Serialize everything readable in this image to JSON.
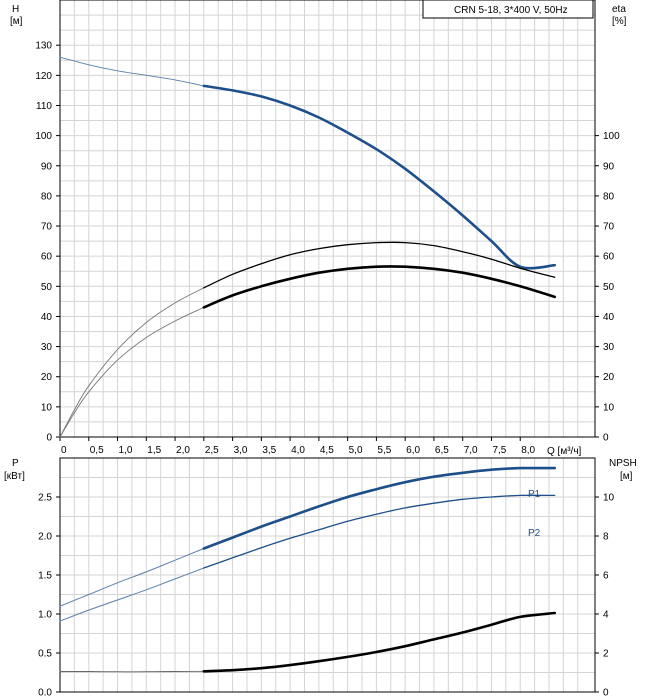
{
  "chart_data": [
    {
      "type": "line",
      "legend_box": "CRN 5-18, 3*400 V, 50Hz",
      "y_left": {
        "label_line1": "H",
        "label_line2": "[м]",
        "ticks": [
          0,
          10,
          20,
          30,
          40,
          50,
          60,
          70,
          80,
          90,
          100,
          110,
          120,
          130
        ],
        "range": [
          0,
          145
        ]
      },
      "y_right": {
        "label_line1": "eta",
        "label_line2": "[%]",
        "ticks": [
          0,
          10,
          20,
          30,
          40,
          50,
          60,
          70,
          80,
          90,
          100
        ],
        "range": [
          0,
          145
        ]
      },
      "x": {
        "label": "Q [м³/ч]",
        "range": [
          0,
          9.3
        ],
        "tick_labels": [
          "0",
          "0,5",
          "1,0",
          "1,5",
          "2,0",
          "2,5",
          "3,0",
          "3,5",
          "4,0",
          "4,5",
          "5,0",
          "5,5",
          "6,0",
          "6,5",
          "7,0",
          "7,5",
          "8,0"
        ]
      },
      "grid": true,
      "series": [
        {
          "id": "H",
          "color": "#1d4f8a",
          "thin": [
            [
              0,
              126
            ],
            [
              0.5,
              123.5
            ],
            [
              1,
              121.5
            ],
            [
              1.5,
              120
            ],
            [
              2,
              118.5
            ],
            [
              2.5,
              116.5
            ]
          ],
          "thick": [
            [
              2.5,
              116.5
            ],
            [
              3,
              115
            ],
            [
              3.5,
              113
            ],
            [
              4,
              110
            ],
            [
              4.5,
              106
            ],
            [
              5,
              101
            ],
            [
              5.5,
              95.5
            ],
            [
              6,
              89
            ],
            [
              6.5,
              81.5
            ],
            [
              7,
              73.5
            ],
            [
              7.5,
              65
            ],
            [
              8,
              56.5
            ],
            [
              8.6,
              57
            ]
          ]
        },
        {
          "id": "eta",
          "color": "#000000",
          "thin": [
            [
              0,
              0
            ],
            [
              0.25,
              9
            ],
            [
              0.5,
              17
            ],
            [
              1,
              29
            ],
            [
              1.5,
              38
            ],
            [
              2,
              44.5
            ],
            [
              2.5,
              49.5
            ]
          ],
          "thick": [
            [
              2.5,
              49.5
            ],
            [
              3,
              54
            ],
            [
              3.5,
              57.5
            ],
            [
              4,
              60.5
            ],
            [
              4.5,
              62.5
            ],
            [
              5,
              63.8
            ],
            [
              5.5,
              64.5
            ],
            [
              6,
              64.5
            ],
            [
              6.5,
              63.5
            ],
            [
              7,
              61.5
            ],
            [
              7.5,
              59
            ],
            [
              8,
              56
            ],
            [
              8.6,
              53
            ]
          ]
        },
        {
          "id": "eta2",
          "color": "#000000",
          "thin": [
            [
              0,
              0
            ],
            [
              0.25,
              8
            ],
            [
              0.5,
              15
            ],
            [
              1,
              25.5
            ],
            [
              1.5,
              33
            ],
            [
              2,
              38.5
            ],
            [
              2.5,
              43
            ]
          ],
          "thick": [
            [
              2.5,
              43
            ],
            [
              3,
              47
            ],
            [
              3.5,
              50
            ],
            [
              4,
              52.5
            ],
            [
              4.5,
              54.5
            ],
            [
              5,
              55.8
            ],
            [
              5.5,
              56.5
            ],
            [
              6,
              56.5
            ],
            [
              6.5,
              55.8
            ],
            [
              7,
              54.5
            ],
            [
              7.5,
              52.5
            ],
            [
              8,
              50
            ],
            [
              8.6,
              46.5
            ]
          ]
        }
      ]
    },
    {
      "type": "line",
      "y_left": {
        "label_line1": "P",
        "label_line2": "[кВт]",
        "ticks": [
          "0.0",
          "0.5",
          "1.0",
          "1.5",
          "2.0",
          "2.5"
        ],
        "range": [
          0,
          3.0
        ]
      },
      "y_right": {
        "label_line1": "NPSH",
        "label_line2": "[м]",
        "ticks": [
          "0",
          "2",
          "4",
          "6",
          "8",
          "10"
        ],
        "range": [
          0,
          12
        ]
      },
      "grid": true,
      "series": [
        {
          "name": "P1",
          "color": "#1d4f8a",
          "thin": [
            [
              0,
              1.1
            ],
            [
              0.5,
              1.25
            ],
            [
              1,
              1.4
            ],
            [
              1.5,
              1.54
            ],
            [
              2,
              1.69
            ],
            [
              2.5,
              1.84
            ]
          ],
          "thick": [
            [
              2.5,
              1.84
            ],
            [
              3,
              1.98
            ],
            [
              3.5,
              2.12
            ],
            [
              4,
              2.25
            ],
            [
              4.5,
              2.38
            ],
            [
              5,
              2.5
            ],
            [
              5.5,
              2.6
            ],
            [
              6,
              2.69
            ],
            [
              6.5,
              2.76
            ],
            [
              7,
              2.81
            ],
            [
              7.5,
              2.85
            ],
            [
              8,
              2.87
            ],
            [
              8.6,
              2.87
            ]
          ]
        },
        {
          "name": "P2",
          "color": "#1d4f8a",
          "thin": [
            [
              0,
              0.91
            ],
            [
              0.5,
              1.05
            ],
            [
              1,
              1.18
            ],
            [
              1.5,
              1.31
            ],
            [
              2,
              1.45
            ],
            [
              2.5,
              1.59
            ]
          ],
          "thin_tail": [
            [
              2.5,
              1.59
            ],
            [
              3,
              1.72
            ],
            [
              3.5,
              1.85
            ],
            [
              4,
              1.97
            ],
            [
              4.5,
              2.08
            ],
            [
              5,
              2.19
            ],
            [
              5.5,
              2.28
            ],
            [
              6,
              2.36
            ],
            [
              6.5,
              2.42
            ],
            [
              7,
              2.47
            ],
            [
              7.5,
              2.5
            ],
            [
              8,
              2.52
            ],
            [
              8.6,
              2.52
            ]
          ]
        },
        {
          "id": "NPSH",
          "color": "#000000",
          "axis": "right",
          "thin": [
            [
              0,
              1.05
            ],
            [
              0.5,
              1.05
            ],
            [
              1,
              1.04
            ],
            [
              1.5,
              1.04
            ],
            [
              2,
              1.05
            ],
            [
              2.5,
              1.06
            ]
          ],
          "thick": [
            [
              2.5,
              1.06
            ],
            [
              3,
              1.12
            ],
            [
              3.5,
              1.22
            ],
            [
              4,
              1.38
            ],
            [
              4.5,
              1.58
            ],
            [
              5,
              1.8
            ],
            [
              5.5,
              2.05
            ],
            [
              6,
              2.35
            ],
            [
              6.5,
              2.7
            ],
            [
              7,
              3.05
            ],
            [
              7.5,
              3.45
            ],
            [
              8,
              3.85
            ],
            [
              8.6,
              4.05
            ]
          ]
        }
      ]
    }
  ]
}
